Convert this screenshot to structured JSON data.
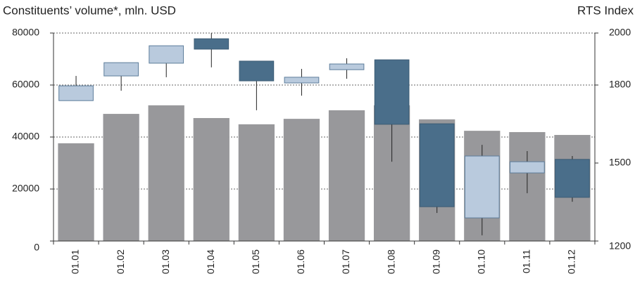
{
  "chart_data": {
    "type": "bar",
    "ylabel": "Constituents’ volume*, mln. USD",
    "y2label": "RTS Index",
    "categories": [
      "01.01",
      "01.02",
      "01.03",
      "01.04",
      "01.05",
      "01.06",
      "01.07",
      "01.08",
      "01.09",
      "01.10",
      "01.11",
      "01.12"
    ],
    "values": [
      37600,
      48900,
      52200,
      47300,
      44900,
      47000,
      50300,
      52200,
      46800,
      42400,
      41900,
      40800
    ],
    "color": "#98989b",
    "ylim": [
      0,
      80000
    ],
    "yticks": [
      0,
      20000,
      40000,
      60000,
      80000
    ],
    "y2lim": [
      1200,
      2000
    ],
    "y2ticks": [
      1200,
      1500,
      1800,
      2000
    ],
    "grid": true,
    "candles": {
      "type": "candlestick",
      "axis": "y2",
      "up_color": "#b9cadd",
      "down_color": "#4a6e8a",
      "open": [
        1740,
        1835,
        1884,
        1978,
        1892,
        1808,
        1859,
        1897,
        1651,
        1289,
        1462,
        1514
      ],
      "high": [
        1835,
        1886,
        1951,
        2000,
        1892,
        1862,
        1903,
        1897,
        1651,
        1570,
        1546,
        1527
      ],
      "low": [
        1740,
        1778,
        1830,
        1868,
        1703,
        1759,
        1824,
        1505,
        1308,
        1222,
        1384,
        1351
      ],
      "close": [
        1797,
        1886,
        1951,
        1938,
        1816,
        1830,
        1881,
        1649,
        1332,
        1527,
        1505,
        1368
      ]
    }
  }
}
